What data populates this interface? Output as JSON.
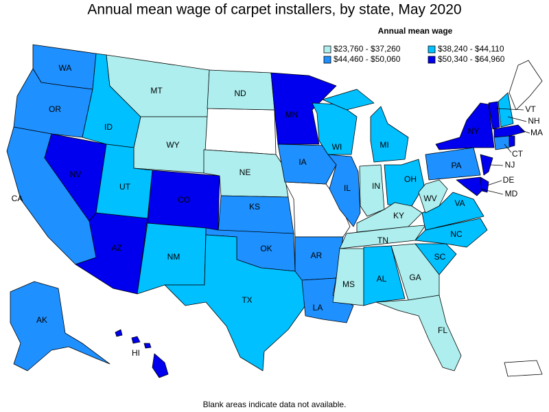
{
  "title": "Annual mean wage of carpet installers, by state, May 2020",
  "legend": {
    "title": "Annual mean wage",
    "items": [
      {
        "label": "$23,760 - $37,260",
        "color": "#aeeeee"
      },
      {
        "label": "$38,240 - $44,110",
        "color": "#00c0ff"
      },
      {
        "label": "$44,460 - $50,060",
        "color": "#1e90ff"
      },
      {
        "label": "$50,340 - $64,960",
        "color": "#0000ee"
      }
    ]
  },
  "states": [
    {
      "label": "WA",
      "bin": 2
    },
    {
      "label": "OR",
      "bin": 2
    },
    {
      "label": "CA",
      "bin": 2
    },
    {
      "label": "NV",
      "bin": 3
    },
    {
      "label": "ID",
      "bin": 1
    },
    {
      "label": "MT",
      "bin": 0
    },
    {
      "label": "WY",
      "bin": 0
    },
    {
      "label": "UT",
      "bin": 1
    },
    {
      "label": "AZ",
      "bin": 3
    },
    {
      "label": "CO",
      "bin": 3
    },
    {
      "label": "NM",
      "bin": 1
    },
    {
      "label": "ND",
      "bin": 0
    },
    {
      "label": "NE",
      "bin": 0
    },
    {
      "label": "KS",
      "bin": 2
    },
    {
      "label": "OK",
      "bin": 2
    },
    {
      "label": "TX",
      "bin": 1
    },
    {
      "label": "MN",
      "bin": 3
    },
    {
      "label": "IA",
      "bin": 2
    },
    {
      "label": "AR",
      "bin": 2
    },
    {
      "label": "LA",
      "bin": 2
    },
    {
      "label": "WI",
      "bin": 1
    },
    {
      "label": "IL",
      "bin": 2
    },
    {
      "label": "MI",
      "bin": 1
    },
    {
      "label": "IN",
      "bin": 0
    },
    {
      "label": "OH",
      "bin": 1
    },
    {
      "label": "KY",
      "bin": 0
    },
    {
      "label": "TN",
      "bin": 0
    },
    {
      "label": "MS",
      "bin": 0
    },
    {
      "label": "AL",
      "bin": 1
    },
    {
      "label": "GA",
      "bin": 0
    },
    {
      "label": "FL",
      "bin": 0
    },
    {
      "label": "SC",
      "bin": 1
    },
    {
      "label": "NC",
      "bin": 1
    },
    {
      "label": "VA",
      "bin": 1
    },
    {
      "label": "WV",
      "bin": 0
    },
    {
      "label": "PA",
      "bin": 2
    },
    {
      "label": "NY",
      "bin": 3
    },
    {
      "label": "NJ",
      "bin": 3
    },
    {
      "label": "DE",
      "bin": 3
    },
    {
      "label": "MD",
      "bin": 3
    },
    {
      "label": "VT",
      "bin": 3
    },
    {
      "label": "NH",
      "bin": 1
    },
    {
      "label": "MA",
      "bin": 3
    },
    {
      "label": "CT",
      "bin": 2
    },
    {
      "label": "AK",
      "bin": 2
    },
    {
      "label": "HI",
      "bin": 3
    }
  ],
  "footnote": "Blank areas indicate data not available."
}
